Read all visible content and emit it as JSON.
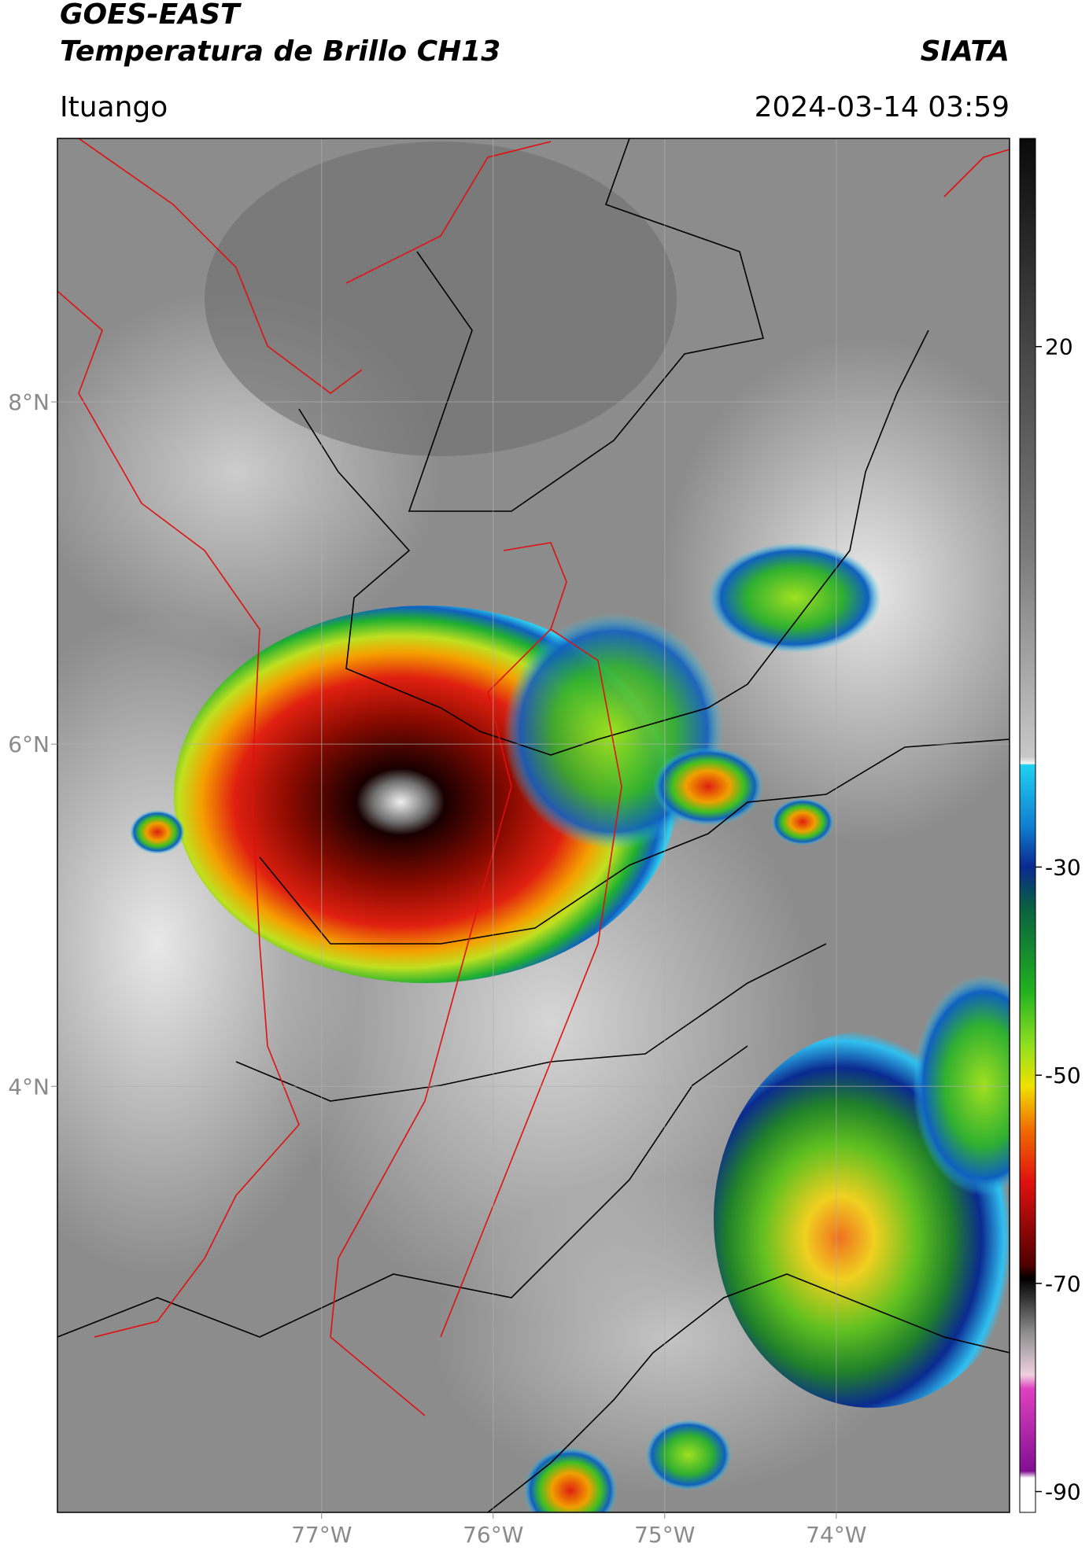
{
  "header": {
    "title": "GOES-EAST",
    "subtitle": "Temperatura de Brillo CH13",
    "source": "SIATA",
    "location": "Ituango",
    "datetime": "2024-03-14 03:59"
  },
  "map": {
    "lonlim": [
      -78.54,
      -72.99
    ],
    "latlim": [
      1.51,
      9.54
    ],
    "lonticks": [
      {
        "value": -77,
        "label": "77°W"
      },
      {
        "value": -76,
        "label": "76°W"
      },
      {
        "value": -75,
        "label": "75°W"
      },
      {
        "value": -74,
        "label": "74°W"
      }
    ],
    "latticks": [
      {
        "value": 8,
        "label": "8°N"
      },
      {
        "value": 6,
        "label": "6°N"
      },
      {
        "value": 4,
        "label": "4°N"
      }
    ],
    "grid": true
  },
  "colorbar": {
    "lim": [
      -92,
      40
    ],
    "ticks": [
      20,
      -30,
      -50,
      -70,
      -90
    ]
  }
}
